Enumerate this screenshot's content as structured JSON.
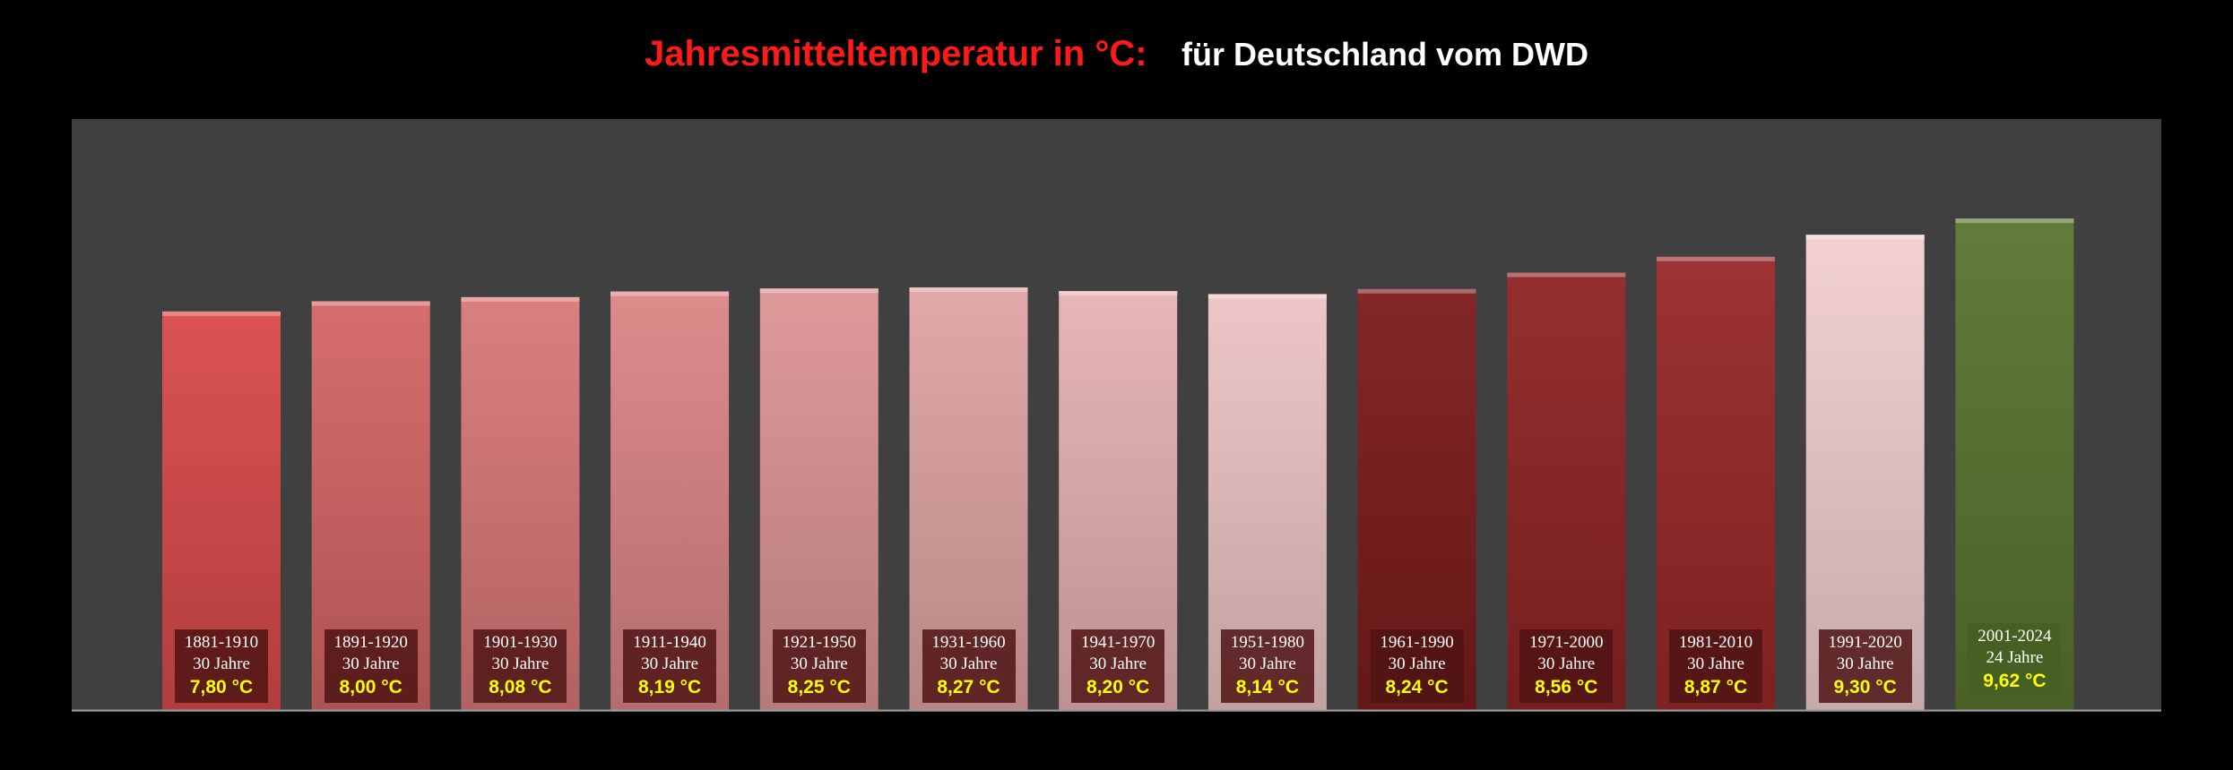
{
  "title": "Jahresmitteltemperatur in °C:",
  "subtitle": "für Deutschland vom DWD",
  "colors": {
    "background": "#000000",
    "plot_area": "#404040",
    "title": "#ff1a1a",
    "value_text": "#ffff00",
    "bars": [
      "#d94a4a",
      "#d46565",
      "#d97878",
      "#db8585",
      "#dd9595",
      "#e0a4a4",
      "#e6b2b2",
      "#ecc4c4",
      "#7c1c1c",
      "#8f2424",
      "#982828",
      "#f2cfcf",
      "#5a7530"
    ]
  },
  "chart_data": {
    "type": "bar",
    "categories": [
      "1881-1910",
      "1891-1920",
      "1901-1930",
      "1911-1940",
      "1921-1950",
      "1931-1960",
      "1941-1970",
      "1951-1980",
      "1961-1990",
      "1971-2000",
      "1981-2010",
      "1991-2020",
      "2001-2024"
    ],
    "periods": [
      "30 Jahre",
      "30 Jahre",
      "30 Jahre",
      "30 Jahre",
      "30 Jahre",
      "30 Jahre",
      "30 Jahre",
      "30 Jahre",
      "30 Jahre",
      "30 Jahre",
      "30 Jahre",
      "30 Jahre",
      "24 Jahre"
    ],
    "values": [
      7.8,
      8.0,
      8.08,
      8.19,
      8.25,
      8.27,
      8.2,
      8.14,
      8.24,
      8.56,
      8.87,
      9.3,
      9.62
    ],
    "value_labels": [
      "7,80 °C",
      "8,00 °C",
      "8,08 °C",
      "8,19 °C",
      "8,25 °C",
      "8,27 °C",
      "8,20 °C",
      "8,14 °C",
      "8,24 °C",
      "8,56 °C",
      "8,87 °C",
      "9,30 °C",
      "9,62 °C"
    ],
    "ylim": [
      0,
      11.6
    ],
    "grid": false,
    "legend": "none",
    "xlabel": "",
    "ylabel": ""
  }
}
